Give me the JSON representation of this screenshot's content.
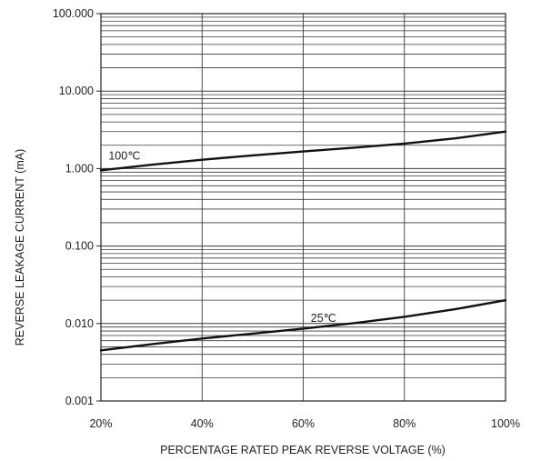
{
  "chart_data": {
    "type": "line",
    "title": "",
    "xlabel": "PERCENTAGE RATED PEAK REVERSE VOLTAGE (%)",
    "ylabel": "REVERSE LEAKAGE CURRENT (mA)",
    "x_unit": "%",
    "y_scale": "log",
    "xlim": [
      20,
      100
    ],
    "ylim": [
      0.001,
      100
    ],
    "x_ticks": [
      20,
      40,
      60,
      80,
      100
    ],
    "x_tick_labels": [
      "20%",
      "40%",
      "60%",
      "80%",
      "100%"
    ],
    "y_ticks": [
      0.001,
      0.01,
      0.1,
      1,
      10,
      100
    ],
    "y_tick_labels": [
      "0.001",
      "0.010",
      "0.100",
      "1.000",
      "10.000",
      "100.000"
    ],
    "grid": true,
    "series": [
      {
        "name": "100℃",
        "x": [
          20,
          30,
          40,
          50,
          60,
          70,
          80,
          90,
          100
        ],
        "y": [
          0.95,
          1.12,
          1.3,
          1.48,
          1.66,
          1.86,
          2.1,
          2.45,
          3.0
        ]
      },
      {
        "name": "25℃",
        "x": [
          20,
          30,
          40,
          50,
          60,
          70,
          80,
          90,
          100
        ],
        "y": [
          0.0045,
          0.0054,
          0.0064,
          0.0074,
          0.0086,
          0.0101,
          0.0122,
          0.0153,
          0.02
        ]
      }
    ]
  }
}
